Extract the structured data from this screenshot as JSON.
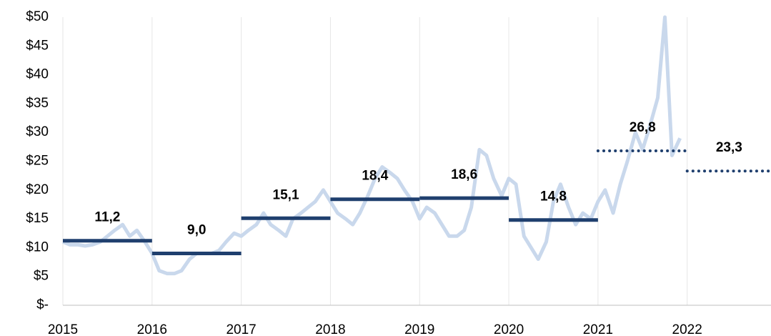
{
  "chart_data": {
    "type": "line",
    "xlim": [
      2015,
      2022.94
    ],
    "xticks": [
      2015,
      2016,
      2017,
      2018,
      2019,
      2020,
      2021,
      2022
    ],
    "ylim": [
      0,
      50
    ],
    "yticks": [
      {
        "value": 0,
        "label": "$-"
      },
      {
        "value": 5,
        "label": "$5"
      },
      {
        "value": 10,
        "label": "$10"
      },
      {
        "value": 15,
        "label": "$15"
      },
      {
        "value": 20,
        "label": "$20"
      },
      {
        "value": 25,
        "label": "$25"
      },
      {
        "value": 30,
        "label": "$30"
      },
      {
        "value": 35,
        "label": "$35"
      },
      {
        "value": 40,
        "label": "$40"
      },
      {
        "value": 45,
        "label": "$45"
      },
      {
        "value": 50,
        "label": "$50"
      }
    ],
    "grid": true,
    "series": [
      {
        "color": "#c9d8ec",
        "x": [
          2015.0,
          2015.08,
          2015.17,
          2015.25,
          2015.33,
          2015.42,
          2015.5,
          2015.58,
          2015.67,
          2015.75,
          2015.83,
          2015.92,
          2016.0,
          2016.08,
          2016.17,
          2016.25,
          2016.33,
          2016.42,
          2016.5,
          2016.58,
          2016.67,
          2016.75,
          2016.83,
          2016.92,
          2017.0,
          2017.08,
          2017.17,
          2017.25,
          2017.33,
          2017.42,
          2017.5,
          2017.58,
          2017.67,
          2017.75,
          2017.83,
          2017.92,
          2018.0,
          2018.08,
          2018.17,
          2018.25,
          2018.33,
          2018.42,
          2018.5,
          2018.58,
          2018.67,
          2018.75,
          2018.83,
          2018.92,
          2019.0,
          2019.08,
          2019.17,
          2019.25,
          2019.33,
          2019.42,
          2019.5,
          2019.58,
          2019.67,
          2019.75,
          2019.83,
          2019.92,
          2020.0,
          2020.08,
          2020.17,
          2020.25,
          2020.33,
          2020.42,
          2020.5,
          2020.58,
          2020.67,
          2020.75,
          2020.83,
          2020.92,
          2021.0,
          2021.08,
          2021.17,
          2021.25,
          2021.33,
          2021.42,
          2021.5,
          2021.58,
          2021.67,
          2021.75,
          2021.83,
          2021.92
        ],
        "values": [
          11,
          10.5,
          10.5,
          10.3,
          10.5,
          11,
          12,
          13,
          14,
          12,
          13,
          11,
          9,
          6,
          5.5,
          5.5,
          6,
          8,
          9,
          9,
          9,
          9.5,
          11,
          12.5,
          12,
          13,
          14,
          16,
          14,
          13,
          12,
          15,
          16,
          17,
          18,
          20,
          18,
          16,
          15,
          14,
          16,
          19,
          22,
          24,
          23,
          22,
          20,
          18,
          15,
          17,
          16,
          14,
          12,
          12,
          13,
          17,
          27,
          26,
          22,
          19,
          22,
          21,
          12,
          10,
          8,
          11,
          18,
          21,
          17,
          14,
          16,
          15,
          18,
          20,
          16,
          21,
          25,
          30,
          27,
          31,
          36,
          50,
          26,
          29
        ]
      },
      {
        "type": "step",
        "color": "#1f3f6e",
        "x": [
          2015,
          2016,
          2017,
          2018,
          2019,
          2020,
          2021,
          2022
        ],
        "values": [
          11.2,
          9.0,
          15.1,
          18.4,
          18.6,
          14.8,
          26.8,
          23.3
        ],
        "value_labels": [
          "11,2",
          "9,0",
          "15,1",
          "18,4",
          "18,6",
          "14,8",
          "26,8",
          "23,3"
        ],
        "dotted": [
          false,
          false,
          false,
          false,
          false,
          false,
          true,
          true
        ]
      }
    ]
  }
}
